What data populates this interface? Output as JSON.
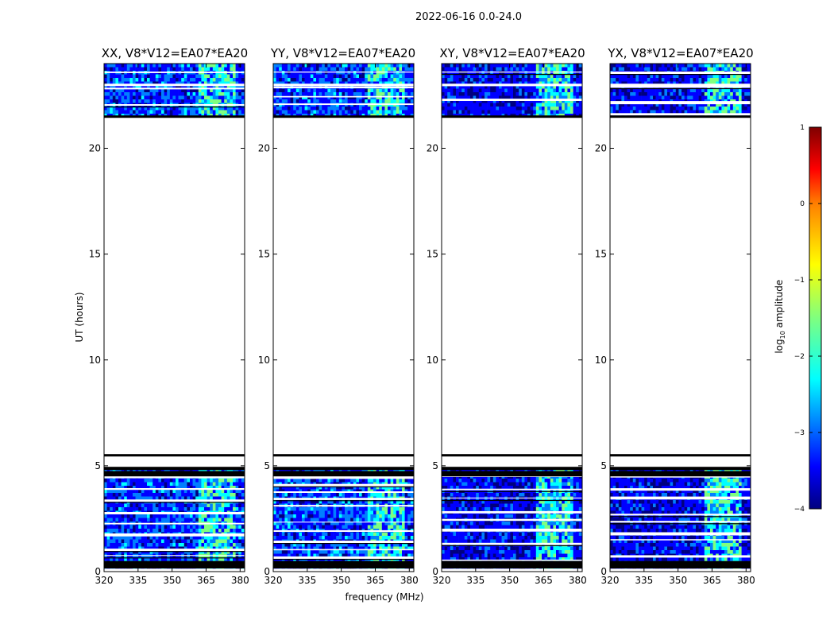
{
  "figure": {
    "suptitle": "2022-06-16 0.0-24.0",
    "ylabel": "UT (hours)",
    "xlabel": "frequency (MHz)",
    "colorbar": {
      "label_prefix": "log",
      "label_sub": "10",
      "label_suffix": " amplitude",
      "colormap": "jet",
      "colors": [
        "#00007f",
        "#0000ff",
        "#007fff",
        "#00ffff",
        "#7fff7f",
        "#ffff00",
        "#ff7f00",
        "#ff0000",
        "#7f0000"
      ]
    }
  },
  "chart_data": {
    "type": "heatmap",
    "title": "2022-06-16 0.0-24.0",
    "xlabel": "frequency (MHz)",
    "ylabel": "UT (hours)",
    "xlim": [
      320,
      382
    ],
    "ylim": [
      0,
      24
    ],
    "xticks": [
      320,
      335,
      350,
      365,
      380
    ],
    "yticks": [
      0,
      5,
      10,
      15,
      20
    ],
    "colorbar": {
      "label": "log10 amplitude",
      "range": [
        -4,
        1
      ],
      "ticks": [
        -4,
        -3,
        -2,
        -1,
        0,
        1
      ]
    },
    "rfi_band_mhz": [
      361,
      377
    ],
    "data_time_ranges_hours": [
      [
        0.15,
        4.9
      ],
      [
        21.5,
        24.0
      ]
    ],
    "gap_hours": [
      5.5,
      21.5
    ],
    "panels": [
      {
        "title": "XX, V8*V12=EA07*EA20",
        "polarization": "XX",
        "cross_pol": false
      },
      {
        "title": "YY, V8*V12=EA07*EA20",
        "polarization": "YY",
        "cross_pol": false
      },
      {
        "title": "XY, V8*V12=EA07*EA20",
        "polarization": "XY",
        "cross_pol": true
      },
      {
        "title": "YX, V8*V12=EA07*EA20",
        "polarization": "YX",
        "cross_pol": true
      }
    ]
  }
}
